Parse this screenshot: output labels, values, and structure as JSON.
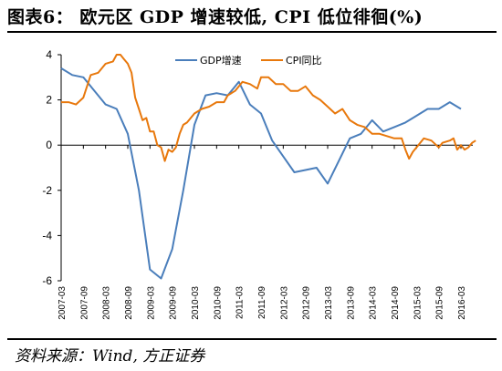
{
  "title": "图表6： 欧元区 GDP 增速较低, CPI 低位徘徊(%)",
  "source": "资料来源：Wind, 方正证券",
  "colors": {
    "gdp": "#4a7ebb",
    "cpi": "#e8780c",
    "axis": "#000000"
  },
  "chart_data": {
    "type": "line",
    "x_ticks": [
      "2007-03",
      "2007-09",
      "2008-03",
      "2008-09",
      "2009-03",
      "2009-09",
      "2010-03",
      "2010-09",
      "2011-03",
      "2011-09",
      "2012-03",
      "2012-09",
      "2013-03",
      "2013-09",
      "2014-03",
      "2014-09",
      "2015-03",
      "2015-09",
      "2016-03"
    ],
    "ylim": [
      -6,
      4
    ],
    "y_ticks": [
      4,
      2,
      0,
      -2,
      -4,
      -6
    ],
    "legend_position": "top-center",
    "series": [
      {
        "name": "GDP增速",
        "color": "#4a7ebb",
        "points": [
          [
            "2007-03",
            3.4
          ],
          [
            "2007-06",
            3.1
          ],
          [
            "2007-09",
            3.0
          ],
          [
            "2007-12",
            2.4
          ],
          [
            "2008-03",
            1.8
          ],
          [
            "2008-06",
            1.6
          ],
          [
            "2008-09",
            0.5
          ],
          [
            "2008-12",
            -2.0
          ],
          [
            "2009-03",
            -5.5
          ],
          [
            "2009-06",
            -5.9
          ],
          [
            "2009-09",
            -4.6
          ],
          [
            "2009-12",
            -2.0
          ],
          [
            "2010-03",
            0.9
          ],
          [
            "2010-06",
            2.2
          ],
          [
            "2010-09",
            2.3
          ],
          [
            "2010-12",
            2.2
          ],
          [
            "2011-03",
            2.8
          ],
          [
            "2011-06",
            1.8
          ],
          [
            "2011-09",
            1.4
          ],
          [
            "2011-12",
            0.2
          ],
          [
            "2012-03",
            -0.5
          ],
          [
            "2012-06",
            -1.2
          ],
          [
            "2012-09",
            -1.1
          ],
          [
            "2012-12",
            -1.0
          ],
          [
            "2013-03",
            -1.7
          ],
          [
            "2013-06",
            -0.7
          ],
          [
            "2013-09",
            0.3
          ],
          [
            "2013-12",
            0.5
          ],
          [
            "2014-03",
            1.1
          ],
          [
            "2014-06",
            0.6
          ],
          [
            "2014-09",
            0.8
          ],
          [
            "2014-12",
            1.0
          ],
          [
            "2015-03",
            1.3
          ],
          [
            "2015-06",
            1.6
          ],
          [
            "2015-09",
            1.6
          ],
          [
            "2015-12",
            1.9
          ],
          [
            "2016-03",
            1.6
          ]
        ]
      },
      {
        "name": "CPI同比",
        "color": "#e8780c",
        "points": [
          [
            "2007-03",
            1.9
          ],
          [
            "2007-05",
            1.9
          ],
          [
            "2007-07",
            1.8
          ],
          [
            "2007-09",
            2.1
          ],
          [
            "2007-11",
            3.1
          ],
          [
            "2008-01",
            3.2
          ],
          [
            "2008-03",
            3.6
          ],
          [
            "2008-05",
            3.7
          ],
          [
            "2008-06",
            4.0
          ],
          [
            "2008-07",
            4.0
          ],
          [
            "2008-08",
            3.8
          ],
          [
            "2008-09",
            3.6
          ],
          [
            "2008-10",
            3.2
          ],
          [
            "2008-11",
            2.1
          ],
          [
            "2008-12",
            1.6
          ],
          [
            "2009-01",
            1.1
          ],
          [
            "2009-02",
            1.2
          ],
          [
            "2009-03",
            0.6
          ],
          [
            "2009-04",
            0.6
          ],
          [
            "2009-05",
            0.0
          ],
          [
            "2009-06",
            -0.1
          ],
          [
            "2009-07",
            -0.7
          ],
          [
            "2009-08",
            -0.2
          ],
          [
            "2009-09",
            -0.3
          ],
          [
            "2009-10",
            -0.1
          ],
          [
            "2009-11",
            0.5
          ],
          [
            "2009-12",
            0.9
          ],
          [
            "2010-01",
            1.0
          ],
          [
            "2010-03",
            1.4
          ],
          [
            "2010-05",
            1.6
          ],
          [
            "2010-07",
            1.7
          ],
          [
            "2010-09",
            1.9
          ],
          [
            "2010-11",
            1.9
          ],
          [
            "2010-12",
            2.2
          ],
          [
            "2011-02",
            2.4
          ],
          [
            "2011-04",
            2.8
          ],
          [
            "2011-06",
            2.7
          ],
          [
            "2011-08",
            2.5
          ],
          [
            "2011-09",
            3.0
          ],
          [
            "2011-11",
            3.0
          ],
          [
            "2012-01",
            2.7
          ],
          [
            "2012-03",
            2.7
          ],
          [
            "2012-05",
            2.4
          ],
          [
            "2012-07",
            2.4
          ],
          [
            "2012-09",
            2.6
          ],
          [
            "2012-11",
            2.2
          ],
          [
            "2013-01",
            2.0
          ],
          [
            "2013-03",
            1.7
          ],
          [
            "2013-05",
            1.4
          ],
          [
            "2013-07",
            1.6
          ],
          [
            "2013-09",
            1.1
          ],
          [
            "2013-11",
            0.9
          ],
          [
            "2014-01",
            0.8
          ],
          [
            "2014-03",
            0.5
          ],
          [
            "2014-05",
            0.5
          ],
          [
            "2014-07",
            0.4
          ],
          [
            "2014-09",
            0.3
          ],
          [
            "2014-11",
            0.3
          ],
          [
            "2014-12",
            -0.2
          ],
          [
            "2015-01",
            -0.6
          ],
          [
            "2015-02",
            -0.3
          ],
          [
            "2015-03",
            -0.1
          ],
          [
            "2015-05",
            0.3
          ],
          [
            "2015-07",
            0.2
          ],
          [
            "2015-09",
            -0.1
          ],
          [
            "2015-10",
            0.1
          ],
          [
            "2015-12",
            0.2
          ],
          [
            "2016-01",
            0.3
          ],
          [
            "2016-02",
            -0.2
          ],
          [
            "2016-03",
            0.0
          ],
          [
            "2016-04",
            -0.2
          ],
          [
            "2016-05",
            -0.1
          ],
          [
            "2016-06",
            0.1
          ],
          [
            "2016-07",
            0.2
          ]
        ]
      }
    ]
  }
}
